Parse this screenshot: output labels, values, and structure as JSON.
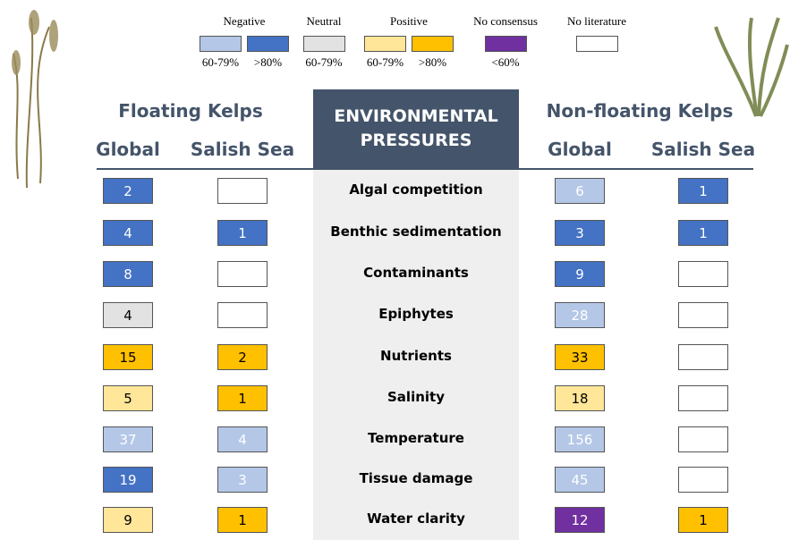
{
  "legend": [
    {
      "label": "Negative",
      "swatches": [
        {
          "color": "#b4c7e7",
          "label": "60-79%"
        },
        {
          "color": "#4472c4",
          "label": ">80%"
        }
      ]
    },
    {
      "label": "Neutral",
      "swatches": [
        {
          "color": "#e2e2e2",
          "label": "60-79%"
        }
      ]
    },
    {
      "label": "Positive",
      "swatches": [
        {
          "color": "#ffe699",
          "label": "60-79%"
        },
        {
          "color": "#ffc000",
          "label": ">80%"
        }
      ]
    },
    {
      "label": "No consensus",
      "swatches": [
        {
          "color": "#7030a0",
          "label": "<60%"
        }
      ]
    },
    {
      "label": "No literature",
      "swatches": [
        {
          "color": "#ffffff"
        }
      ]
    }
  ],
  "header": {
    "left": "Floating Kelps",
    "center": "ENVIRONMENTAL PRESSURES",
    "right": "Non-floating Kelps",
    "columns": [
      "Global",
      "Salish Sea",
      "Global",
      "Salish Sea"
    ]
  },
  "rows": [
    {
      "pressure": "Algal competition",
      "cells": [
        {
          "value": 2,
          "color": "#4472c4",
          "text_color": "#ffffff"
        },
        {
          "value": null,
          "color": "#ffffff"
        },
        {
          "value": 6,
          "color": "#b4c7e7",
          "text_color": "#ffffff"
        },
        {
          "value": 1,
          "color": "#4472c4",
          "text_color": "#ffffff"
        }
      ]
    },
    {
      "pressure": "Benthic sedimentation",
      "cells": [
        {
          "value": 4,
          "color": "#4472c4",
          "text_color": "#ffffff"
        },
        {
          "value": 1,
          "color": "#4472c4",
          "text_color": "#ffffff"
        },
        {
          "value": 3,
          "color": "#4472c4",
          "text_color": "#ffffff"
        },
        {
          "value": 1,
          "color": "#4472c4",
          "text_color": "#ffffff"
        }
      ]
    },
    {
      "pressure": "Contaminants",
      "cells": [
        {
          "value": 8,
          "color": "#4472c4",
          "text_color": "#ffffff"
        },
        {
          "value": null,
          "color": "#ffffff"
        },
        {
          "value": 9,
          "color": "#4472c4",
          "text_color": "#ffffff"
        },
        {
          "value": null,
          "color": "#ffffff"
        }
      ]
    },
    {
      "pressure": "Epiphytes",
      "cells": [
        {
          "value": 4,
          "color": "#e2e2e2",
          "text_color": "#000000"
        },
        {
          "value": null,
          "color": "#ffffff"
        },
        {
          "value": 28,
          "color": "#b4c7e7",
          "text_color": "#ffffff"
        },
        {
          "value": null,
          "color": "#ffffff"
        }
      ]
    },
    {
      "pressure": "Nutrients",
      "cells": [
        {
          "value": 15,
          "color": "#ffc000",
          "text_color": "#000000"
        },
        {
          "value": 2,
          "color": "#ffc000",
          "text_color": "#000000"
        },
        {
          "value": 33,
          "color": "#ffc000",
          "text_color": "#000000"
        },
        {
          "value": null,
          "color": "#ffffff"
        }
      ]
    },
    {
      "pressure": "Salinity",
      "cells": [
        {
          "value": 5,
          "color": "#ffe699",
          "text_color": "#000000"
        },
        {
          "value": 1,
          "color": "#ffc000",
          "text_color": "#000000"
        },
        {
          "value": 18,
          "color": "#ffe699",
          "text_color": "#000000"
        },
        {
          "value": null,
          "color": "#ffffff"
        }
      ]
    },
    {
      "pressure": "Temperature",
      "cells": [
        {
          "value": 37,
          "color": "#b4c7e7",
          "text_color": "#ffffff"
        },
        {
          "value": 4,
          "color": "#b4c7e7",
          "text_color": "#ffffff"
        },
        {
          "value": 156,
          "color": "#b4c7e7",
          "text_color": "#ffffff"
        },
        {
          "value": null,
          "color": "#ffffff"
        }
      ]
    },
    {
      "pressure": "Tissue damage",
      "cells": [
        {
          "value": 19,
          "color": "#4472c4",
          "text_color": "#ffffff"
        },
        {
          "value": 3,
          "color": "#b4c7e7",
          "text_color": "#ffffff"
        },
        {
          "value": 45,
          "color": "#b4c7e7",
          "text_color": "#ffffff"
        },
        {
          "value": null,
          "color": "#ffffff"
        }
      ]
    },
    {
      "pressure": "Water clarity",
      "cells": [
        {
          "value": 9,
          "color": "#ffe699",
          "text_color": "#000000"
        },
        {
          "value": 1,
          "color": "#ffc000",
          "text_color": "#000000"
        },
        {
          "value": 12,
          "color": "#7030a0",
          "text_color": "#ffffff"
        },
        {
          "value": 1,
          "color": "#ffc000",
          "text_color": "#000000"
        }
      ]
    }
  ]
}
